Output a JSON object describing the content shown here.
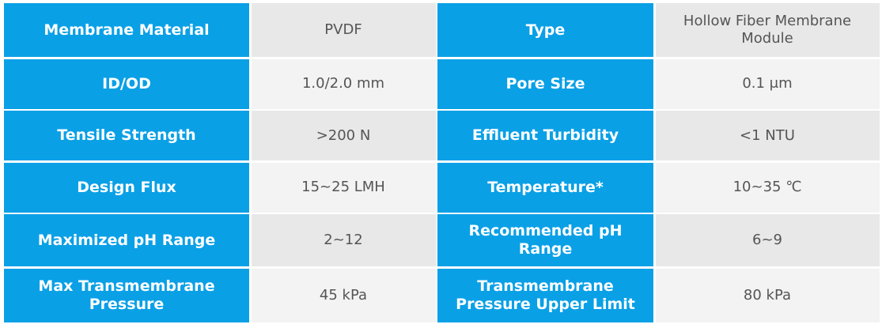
{
  "table": {
    "rows": [
      [
        "Membrane Material",
        "PVDF",
        "Type",
        "Hollow Fiber Membrane Module"
      ],
      [
        "ID/OD",
        "1.0/2.0 mm",
        "Pore Size",
        "0.1 μm"
      ],
      [
        "Tensile Strength",
        ">200 N",
        "Effluent Turbidity",
        "<1 NTU"
      ],
      [
        "Design Flux",
        "15~25 LMH",
        "Temperature*",
        "10~35 ℃"
      ],
      [
        "Maximized pH Range",
        "2~12",
        "Recommended pH Range",
        "6~9"
      ],
      [
        "Max Transmembrane Pressure",
        "45 kPa",
        "Transmembrane Pressure Upper Limit",
        "80 kPa"
      ]
    ]
  }
}
